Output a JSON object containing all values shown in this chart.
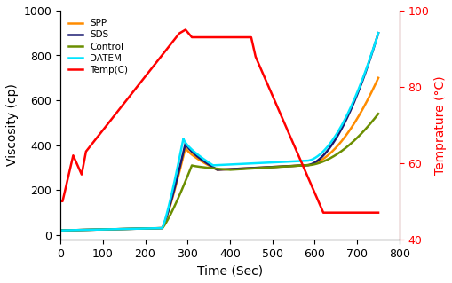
{
  "title": "",
  "xlabel": "Time (Sec)",
  "ylabel_left": "Viscosity (cp)",
  "ylabel_right": "Temprature (°C)",
  "xlim": [
    0,
    800
  ],
  "ylim_left": [
    -20,
    1000
  ],
  "ylim_right": [
    40,
    100
  ],
  "xticks": [
    0,
    100,
    200,
    300,
    400,
    500,
    600,
    700,
    800
  ],
  "yticks_left": [
    0,
    200,
    400,
    600,
    800,
    1000
  ],
  "yticks_right": [
    40,
    60,
    80,
    100
  ],
  "legend_entries": [
    "SPP",
    "SDS",
    "Control",
    "DATEM",
    "Temp(C)"
  ],
  "line_colors": {
    "SPP": "#FF8C00",
    "SDS": "#191970",
    "Control": "#6B8E00",
    "DATEM": "#00E5FF",
    "Temp": "#FF0000"
  },
  "background_color": "#ffffff",
  "right_axis_color": "#FF0000"
}
